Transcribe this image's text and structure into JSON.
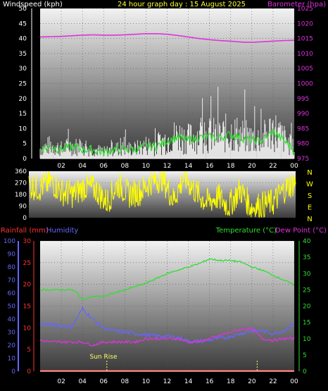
{
  "header": {
    "windspeed_label": "Windspeed (kph)",
    "graph_title": "24 hour graph day : 15 August 2025",
    "barometer_label": "Barometer (hpa)"
  },
  "colors": {
    "windspeed": "#ffffff",
    "wind_avg": "#33dd33",
    "barometer": "#dd33dd",
    "direction": "#ffff00",
    "temperature": "#33dd33",
    "dew_point": "#dd33dd",
    "humidity": "#6666ff",
    "rainfall": "#ff3333",
    "sunrise": "#ffff66"
  },
  "lower_header": {
    "rainfall_label": "Rainfall (mm)",
    "humidity_label": "Humidity",
    "temperature_label": "Temperature (°C)",
    "dewpoint_label": "Dew Point (°C)"
  },
  "annotations": {
    "sun_rise": "Sun Rise"
  },
  "compass_letters": [
    "N",
    "W",
    "S",
    "E",
    "N"
  ],
  "chart_data": [
    {
      "type": "line",
      "x_ticks": [
        "02",
        "04",
        "06",
        "08",
        "10",
        "12",
        "14",
        "16",
        "18",
        "20",
        "22",
        "00"
      ],
      "y_left_ticks": [
        0,
        5,
        10,
        15,
        20,
        25,
        30,
        35,
        40,
        45,
        50
      ],
      "y_right_ticks": [
        975,
        980,
        985,
        990,
        995,
        1000,
        1005,
        1010,
        1015,
        1020,
        1025
      ],
      "ylim_left": [
        0,
        50
      ],
      "ylim_right": [
        975,
        1025
      ],
      "series": [
        {
          "name": "Windspeed (kph)",
          "axis": "left",
          "x": [
            0,
            1,
            2,
            3,
            4,
            5,
            6,
            7,
            8,
            9,
            10,
            11,
            12,
            13,
            14,
            15,
            16,
            17,
            18,
            19,
            20,
            21,
            22,
            23,
            24
          ],
          "values": [
            3,
            4,
            3,
            4,
            3,
            3,
            2,
            3,
            3,
            3,
            4,
            4,
            6,
            7,
            6,
            7,
            7,
            7,
            8,
            7,
            6,
            6,
            9,
            6,
            3
          ]
        },
        {
          "name": "Barometer (hpa)",
          "axis": "right",
          "x": [
            0,
            1,
            2,
            3,
            4,
            5,
            6,
            7,
            8,
            9,
            10,
            11,
            12,
            13,
            14,
            15,
            16,
            17,
            18,
            19,
            20,
            21,
            22,
            23,
            24
          ],
          "values": [
            1015.5,
            1015.6,
            1015.7,
            1015.9,
            1016.1,
            1016.2,
            1016.1,
            1016.1,
            1016.2,
            1016.4,
            1016.6,
            1016.6,
            1016.4,
            1016,
            1015.5,
            1015,
            1014.6,
            1014.3,
            1014.1,
            1013.8,
            1013.7,
            1013.9,
            1014.1,
            1014.3,
            1014.4
          ]
        }
      ]
    },
    {
      "type": "line",
      "y_ticks": [
        0,
        90,
        180,
        270,
        360
      ],
      "ylim": [
        0,
        360
      ],
      "x_ticks": [
        "02",
        "04",
        "06",
        "08",
        "10",
        "12",
        "14",
        "16",
        "18",
        "20",
        "22",
        "00"
      ],
      "series": [
        {
          "name": "Wind direction",
          "x": [
            0,
            1,
            2,
            3,
            4,
            5,
            6,
            7,
            8,
            9,
            10,
            11,
            12,
            13,
            14,
            15,
            16,
            17,
            18,
            19,
            20,
            21,
            22,
            23,
            24
          ],
          "values": [
            250,
            230,
            280,
            200,
            180,
            240,
            220,
            120,
            260,
            180,
            200,
            280,
            310,
            140,
            320,
            200,
            120,
            160,
            90,
            220,
            80,
            100,
            120,
            220,
            280
          ]
        }
      ]
    },
    {
      "type": "line",
      "x_ticks": [
        "02",
        "04",
        "06",
        "08",
        "10",
        "12",
        "14",
        "16",
        "18",
        "20",
        "22",
        "00"
      ],
      "y_left_ticks": [
        0,
        10,
        20,
        30,
        40,
        50,
        60,
        70,
        80,
        90,
        100
      ],
      "y_rain_ticks": [
        0,
        5,
        10,
        15,
        20,
        25,
        30
      ],
      "y_right_ticks": [
        0,
        5,
        10,
        15,
        20,
        25,
        30,
        35,
        40
      ],
      "ylim_humidity": [
        0,
        100
      ],
      "ylim_rain": [
        0,
        30
      ],
      "ylim_temp": [
        0,
        40
      ],
      "series": [
        {
          "name": "Temperature (°C)",
          "x": [
            0,
            1,
            2,
            3,
            3.5,
            4,
            5,
            6,
            7,
            8,
            9,
            10,
            11,
            12,
            13,
            14,
            15,
            16,
            17,
            18,
            19,
            20,
            21,
            22,
            23,
            24
          ],
          "values": [
            25,
            25,
            25,
            25,
            24,
            22,
            23,
            23,
            24,
            25,
            26,
            27,
            28.5,
            30,
            31,
            32,
            33,
            34.5,
            34,
            34,
            33.5,
            32,
            31,
            29.5,
            28,
            26.5
          ]
        },
        {
          "name": "Dew Point (°C)",
          "x": [
            0,
            1,
            2,
            3,
            4,
            5,
            6,
            7,
            8,
            9,
            10,
            11,
            12,
            13,
            14,
            15,
            16,
            17,
            18,
            19,
            20,
            21,
            22,
            23,
            24
          ],
          "values": [
            9.5,
            9,
            9,
            9,
            9,
            8,
            9,
            9,
            9,
            9,
            10,
            10,
            10,
            10,
            9,
            9,
            10,
            11,
            12,
            13,
            13,
            10,
            9.5,
            10,
            10
          ]
        },
        {
          "name": "Humidity",
          "x": [
            0,
            1,
            2,
            3,
            4,
            5,
            6,
            7,
            8,
            9,
            10,
            11,
            12,
            13,
            14,
            15,
            16,
            17,
            18,
            19,
            20,
            21,
            22,
            23,
            24
          ],
          "values": [
            36,
            36,
            35,
            34,
            48,
            40,
            33,
            31,
            30,
            29,
            28,
            27,
            27,
            26,
            23,
            23,
            24,
            25,
            27,
            29,
            31,
            31,
            29,
            31,
            37
          ]
        },
        {
          "name": "Rainfall (mm)",
          "x": [
            0,
            24
          ],
          "values": [
            0,
            0
          ]
        }
      ],
      "sunrise_hour": 6.3
    }
  ]
}
